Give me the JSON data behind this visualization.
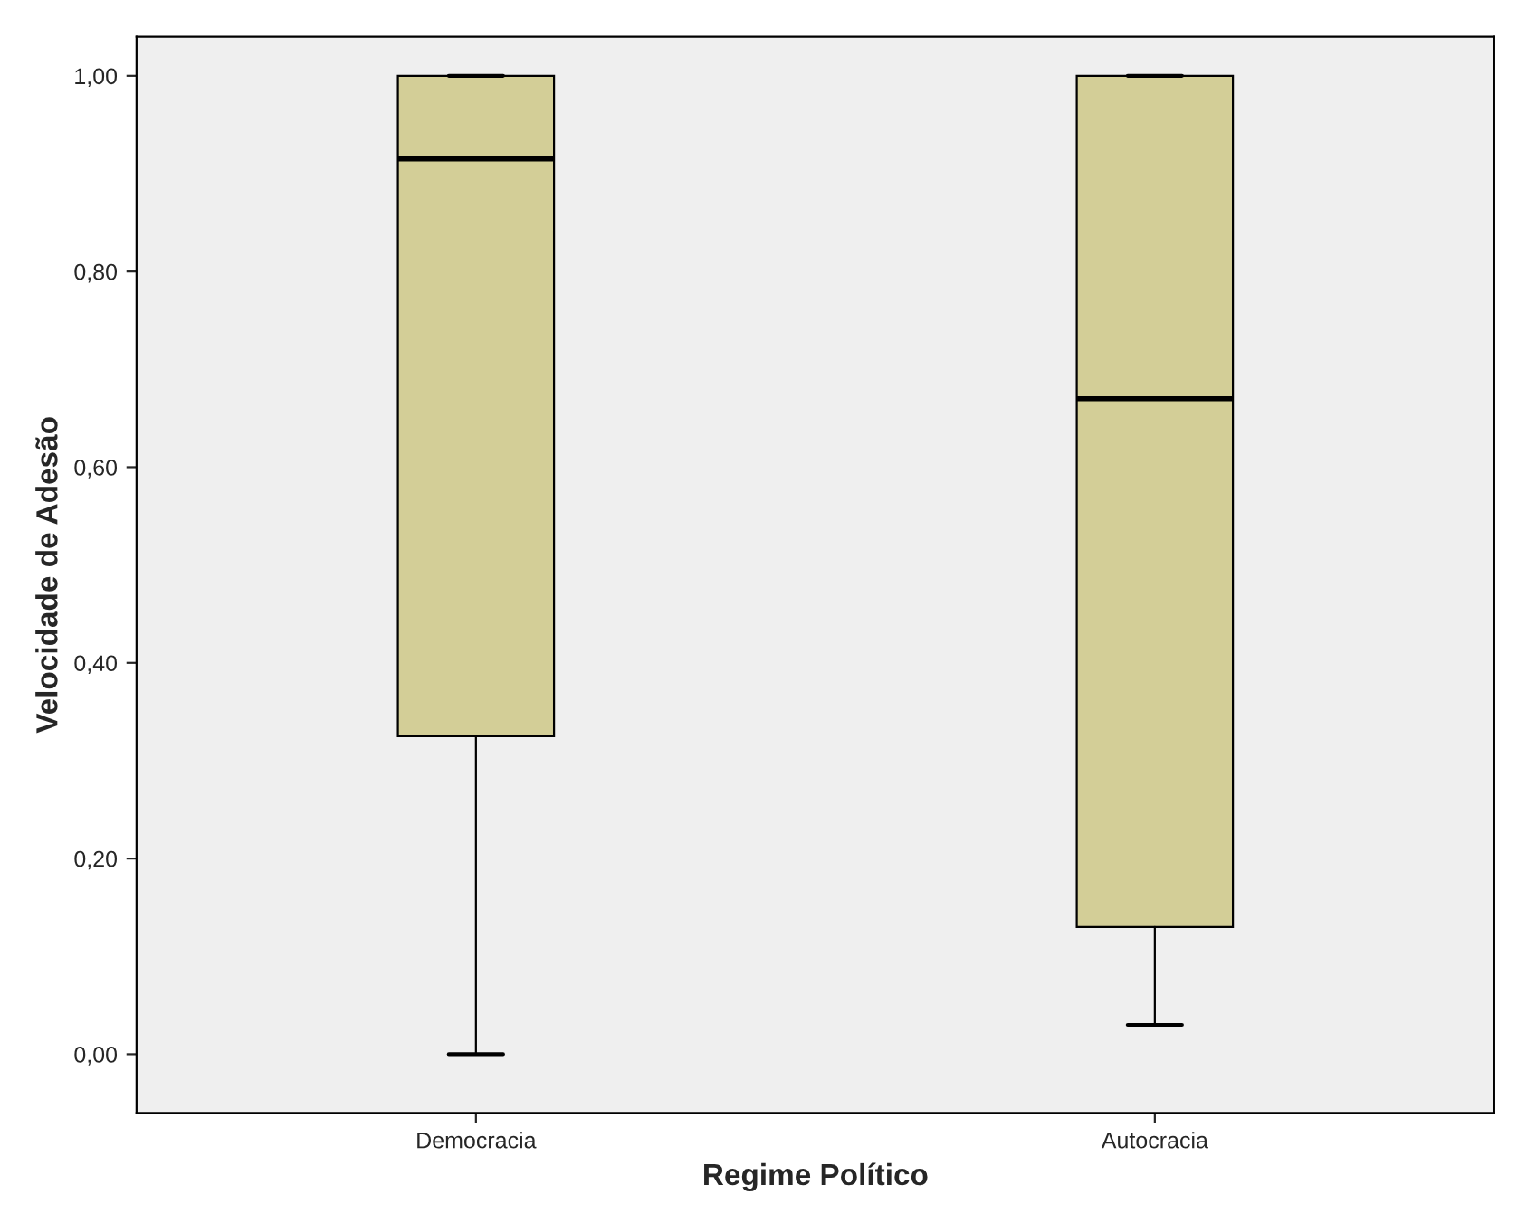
{
  "chart_data": {
    "type": "box",
    "xlabel": "Regime Político",
    "ylabel": "Velocidade de Adesão",
    "categories": [
      "Democracia",
      "Autocracia"
    ],
    "boxes": [
      {
        "low": 0.0,
        "q1": 0.325,
        "median": 0.915,
        "q3": 1.0,
        "high": 1.0
      },
      {
        "low": 0.03,
        "q1": 0.13,
        "median": 0.67,
        "q3": 1.0,
        "high": 1.0
      }
    ],
    "color": "#d3ce97",
    "ylim": [
      -0.06,
      1.04
    ],
    "yticks": [
      {
        "value": 0,
        "label": "0,00"
      },
      {
        "value": 0.2,
        "label": "0,20"
      },
      {
        "value": 0.4,
        "label": "0,40"
      },
      {
        "value": 0.6,
        "label": "0,60"
      },
      {
        "value": 0.8,
        "label": "0,80"
      },
      {
        "value": 1.0,
        "label": "1,00"
      }
    ],
    "grid": false
  }
}
